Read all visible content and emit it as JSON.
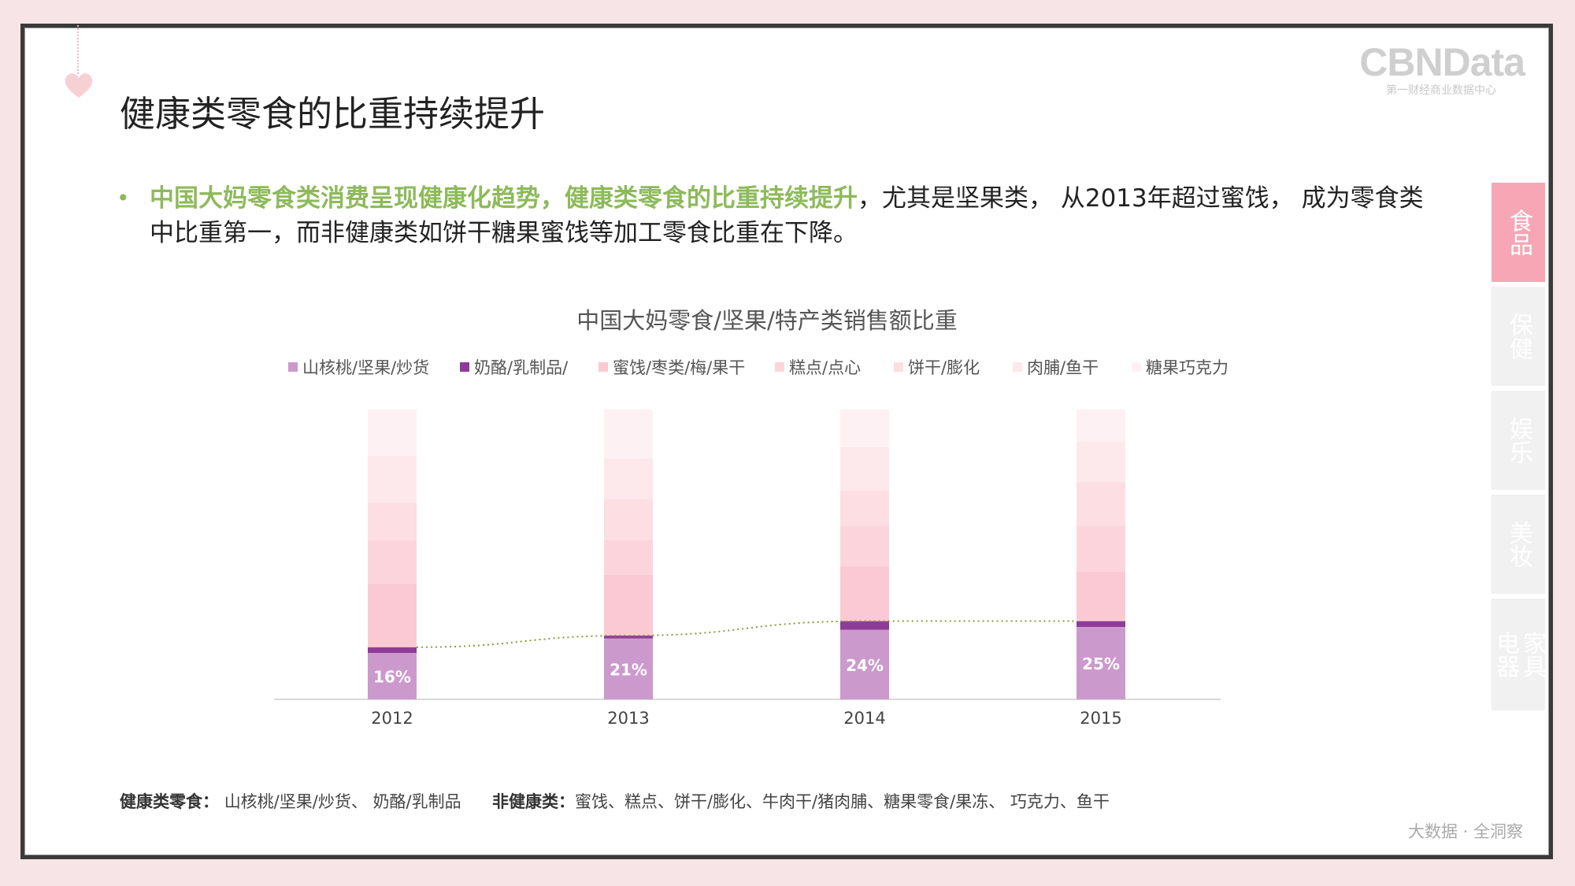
{
  "logo": {
    "brand": "CBNData",
    "sub": "第一财经商业数据中心"
  },
  "page_title": "健康类零食的比重持续提升",
  "bullet": {
    "highlight": "中国大妈零食类消费呈现健康化趋势，健康类零食的比重持续提升",
    "rest": "，尤其是坚果类， 从2013年超过蜜饯， 成为零食类中比重第一，而非健康类如饼干糖果蜜饯等加工零食比重在下降。"
  },
  "colors": {
    "accent_green": "#8dba5b",
    "nuts": "#cc99cc",
    "dairy": "#8e3b99",
    "trend": "#8a9a3a"
  },
  "chart_data": {
    "type": "bar",
    "stacked": true,
    "title": "中国大妈零食/坚果/特产类销售额比重",
    "categories": [
      "2012",
      "2013",
      "2014",
      "2015"
    ],
    "ylim": [
      0,
      100
    ],
    "series": [
      {
        "name": "山核桃/坚果/炒货",
        "color": "#cc99cc",
        "values": [
          16,
          21,
          24,
          25
        ],
        "labels": [
          "16%",
          "21%",
          "24%",
          "25%"
        ]
      },
      {
        "name": "奶酪/乳制品/",
        "color": "#8e3b99",
        "values": [
          2,
          1,
          3,
          2
        ]
      },
      {
        "name": "蜜饯/枣类/梅/果干",
        "color": "#fbc9d3",
        "values": [
          22,
          21,
          19,
          17
        ]
      },
      {
        "name": "糕点/点心",
        "color": "#fcd5dc",
        "values": [
          15,
          12,
          14,
          16
        ]
      },
      {
        "name": "饼干/膨化",
        "color": "#fcdee3",
        "values": [
          13,
          14,
          12,
          15
        ]
      },
      {
        "name": "肉脯/鱼干",
        "color": "#fde8ec",
        "values": [
          16,
          14,
          15,
          14
        ]
      },
      {
        "name": "糖果巧克力",
        "color": "#fef1f3",
        "values": [
          16,
          17,
          13,
          11
        ]
      }
    ],
    "trend_line": {
      "style": "dotted",
      "based_on": "山核桃/坚果/炒货 + 奶酪/乳制品/"
    }
  },
  "footnote": {
    "healthy_label": "健康类零食：",
    "healthy_items": "山核桃/坚果/炒货、 奶酪/乳制品",
    "unhealthy_label": "非健康类：",
    "unhealthy_items": "蜜饯、糕点、饼干/膨化、牛肉干/猪肉脯、糖果零食/果冻、 巧克力、鱼干"
  },
  "tagline": "大数据 · 全洞察",
  "side_tabs": [
    {
      "label": "食品",
      "active": true
    },
    {
      "label": "保健",
      "active": false
    },
    {
      "label": "娱乐",
      "active": false
    },
    {
      "label": "美妆",
      "active": false
    },
    {
      "label": "家具电器",
      "active": false
    }
  ]
}
